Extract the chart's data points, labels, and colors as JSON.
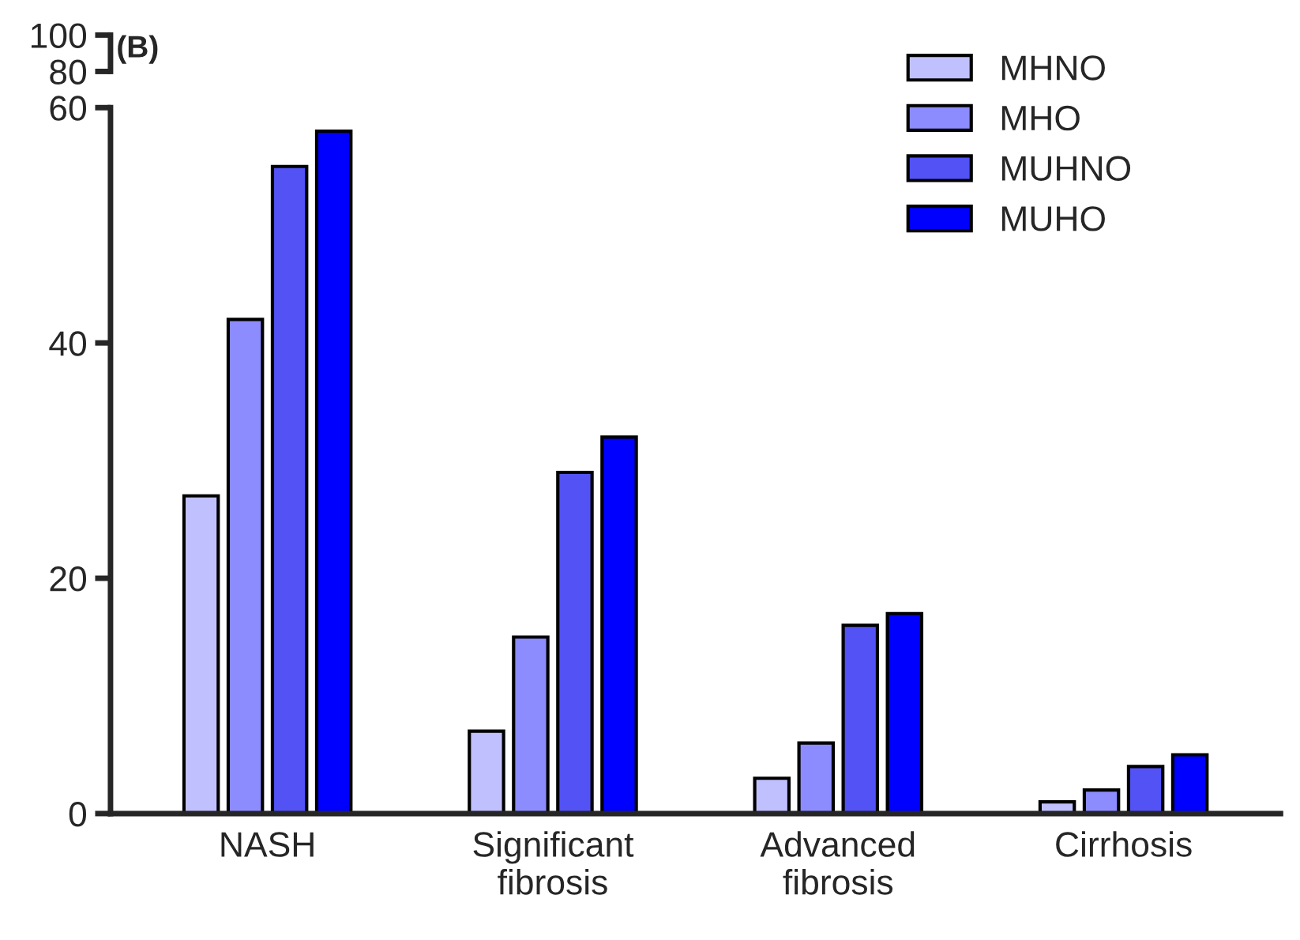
{
  "chart_data": [
    {
      "type": "bar",
      "title": "(B)",
      "categories": [
        null,
        null,
        null,
        null
      ],
      "series": [
        {
          "color": "#c0c0ff",
          "values": [
            null,
            null,
            null,
            null
          ]
        },
        {
          "color": "#8c8cff",
          "values": [
            null,
            null,
            null,
            null
          ]
        },
        {
          "color": "#5252f5",
          "values": [
            null,
            null,
            null,
            null
          ]
        },
        {
          "color": "#0000ff",
          "values": [
            null,
            null,
            null,
            null
          ]
        }
      ],
      "ylim": [
        80,
        100
      ],
      "yticks": [
        80,
        100
      ],
      "tick_labels": "y"
    },
    {
      "type": "bar",
      "categories": [
        "NASH",
        "Significant\nfibrosis",
        "Advanced\nfibrosis",
        "Cirrhosis"
      ],
      "series": [
        {
          "name": "MHNO",
          "color": "#c0c0ff",
          "values": [
            27,
            7,
            3,
            1
          ]
        },
        {
          "name": "MHO",
          "color": "#8c8cff",
          "values": [
            42,
            15,
            6,
            2
          ]
        },
        {
          "name": "MUHNO",
          "color": "#5252f5",
          "values": [
            55,
            29,
            16,
            4
          ]
        },
        {
          "name": "MUHO",
          "color": "#0000ff",
          "values": [
            58,
            32,
            17,
            5
          ]
        }
      ],
      "ylim": [
        0,
        60
      ],
      "yticks": [
        0,
        20,
        40,
        60
      ],
      "legend": "top right"
    }
  ]
}
